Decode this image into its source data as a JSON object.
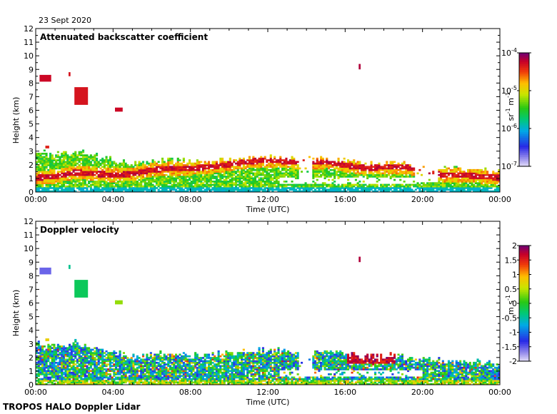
{
  "date_label": "23 Sept 2020",
  "footer_label": "TROPOS HALO Doppler Lidar",
  "chart_data": [
    {
      "type": "heatmap",
      "title": "Attenuated backscatter coefficient",
      "xlabel": "Time (UTC)",
      "ylabel": "Height (km)",
      "xticks": [
        "00:00",
        "04:00",
        "08:00",
        "12:00",
        "16:00",
        "20:00",
        "00:00"
      ],
      "yticks": [
        "0",
        "1",
        "2",
        "3",
        "4",
        "5",
        "6",
        "7",
        "8",
        "9",
        "10",
        "11",
        "12"
      ],
      "xlim_hours": [
        0,
        24
      ],
      "ylim": [
        0,
        12
      ],
      "colorbar": {
        "scale": "log",
        "range": [
          1e-07,
          0.0001
        ],
        "ticks": [
          {
            "base": "10",
            "exp": "-4"
          },
          {
            "base": "10",
            "exp": "-5"
          },
          {
            "base": "10",
            "exp": "-6"
          },
          {
            "base": "10",
            "exp": "-7"
          }
        ],
        "unit_parts": [
          "sr",
          "-1",
          " m",
          "-1"
        ]
      },
      "features": [
        {
          "t0": 0.2,
          "t1": 0.8,
          "h0": 8.1,
          "h1": 8.6,
          "level": 0.92
        },
        {
          "t0": 1.7,
          "t1": 1.8,
          "h0": 8.5,
          "h1": 8.8,
          "level": 0.9
        },
        {
          "t0": 2.0,
          "t1": 2.7,
          "h0": 6.4,
          "h1": 7.7,
          "level": 0.9
        },
        {
          "t0": 4.1,
          "t1": 4.5,
          "h0": 5.9,
          "h1": 6.2,
          "level": 0.92
        },
        {
          "t0": 16.7,
          "t1": 16.8,
          "h0": 9.0,
          "h1": 9.4,
          "level": 0.95
        },
        {
          "t0": 0.5,
          "t1": 0.7,
          "h0": 3.2,
          "h1": 3.4,
          "level": 0.88
        }
      ],
      "profile": {
        "times": [
          0,
          1,
          2,
          3,
          4,
          5,
          6,
          7,
          8,
          9,
          10,
          11,
          12,
          13,
          14,
          15,
          16,
          17,
          18,
          19,
          20,
          21,
          22,
          23,
          24
        ],
        "top_km": [
          2.9,
          2.7,
          3.0,
          2.6,
          2.3,
          2.0,
          2.2,
          2.3,
          2.1,
          2.2,
          2.3,
          2.4,
          2.5,
          2.4,
          2.3,
          2.4,
          2.2,
          2.0,
          2.1,
          2.0,
          1.8,
          1.7,
          1.6,
          1.6,
          1.4
        ],
        "layer_km": [
          1.0,
          1.1,
          1.4,
          1.3,
          1.2,
          1.3,
          1.6,
          1.7,
          1.7,
          1.8,
          2.0,
          2.2,
          2.3,
          2.2,
          2.1,
          2.2,
          1.9,
          1.7,
          1.8,
          1.8,
          1.5,
          1.2,
          1.2,
          1.1,
          1.0
        ]
      }
    },
    {
      "type": "heatmap",
      "title": "Doppler velocity",
      "xlabel": "Time (UTC)",
      "ylabel": "Height (km)",
      "xticks": [
        "00:00",
        "04:00",
        "08:00",
        "12:00",
        "16:00",
        "20:00",
        "00:00"
      ],
      "yticks": [
        "0",
        "1",
        "2",
        "3",
        "4",
        "5",
        "6",
        "7",
        "8",
        "9",
        "10",
        "11",
        "12"
      ],
      "xlim_hours": [
        0,
        24
      ],
      "ylim": [
        0,
        12
      ],
      "colorbar": {
        "scale": "linear",
        "range": [
          -2,
          2
        ],
        "ticks": [
          "2",
          "1.5",
          "1",
          "0.5",
          "0",
          "-0.5",
          "-1",
          "-1.5",
          "-2"
        ],
        "unit_parts": [
          "m",
          "",
          " s",
          "-1"
        ]
      },
      "features": [
        {
          "t0": 0.2,
          "t1": 0.8,
          "h0": 8.1,
          "h1": 8.6,
          "level": 0.12
        },
        {
          "t0": 1.7,
          "t1": 1.8,
          "h0": 8.5,
          "h1": 8.8,
          "level": 0.4
        },
        {
          "t0": 2.0,
          "t1": 2.7,
          "h0": 6.4,
          "h1": 7.7,
          "level": 0.45
        },
        {
          "t0": 4.1,
          "t1": 4.5,
          "h0": 5.9,
          "h1": 6.2,
          "level": 0.6
        },
        {
          "t0": 16.7,
          "t1": 16.8,
          "h0": 9.0,
          "h1": 9.4,
          "level": 0.95
        },
        {
          "t0": 0.5,
          "t1": 0.7,
          "h0": 3.2,
          "h1": 3.4,
          "level": 0.7
        }
      ]
    }
  ]
}
